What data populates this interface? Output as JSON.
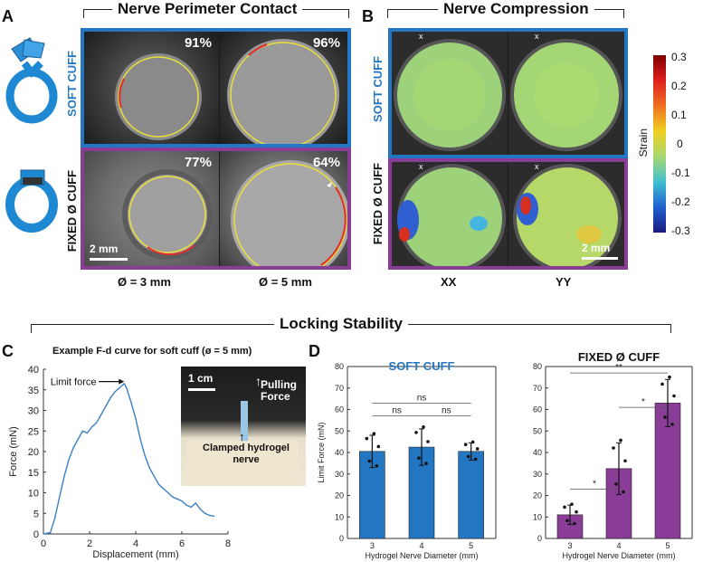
{
  "panels": {
    "a": "A",
    "b": "B",
    "c": "C",
    "d": "D"
  },
  "titles": {
    "perimeter": "Nerve Perimeter Contact",
    "compression": "Nerve Compression",
    "locking": "Locking Stability"
  },
  "perimeter": {
    "row_soft": "SOFT CUFF",
    "row_fixed": "FIXED Ø CUFF",
    "pct_soft_3": "91%",
    "pct_soft_5": "96%",
    "pct_fixed_3": "77%",
    "pct_fixed_5": "64%",
    "diam_3": "Ø = 3 mm",
    "diam_5": "Ø = 5 mm",
    "scale": "2 mm"
  },
  "compression": {
    "row_soft": "SOFT CUFF",
    "row_fixed": "FIXED Ø CUFF",
    "col_xx": "XX",
    "col_yy": "YY",
    "scale": "2 mm",
    "axis_mark": "x",
    "colorbar": {
      "label": "Strain",
      "ticks": [
        "0.3",
        "0.2",
        "0.1",
        "0",
        "-0.1",
        "-0.2",
        "-0.3"
      ]
    }
  },
  "colors": {
    "soft": "#2276c2",
    "fixed": "#8a3d96",
    "line": "#3a80c4"
  },
  "chart_data": [
    {
      "type": "line",
      "title": "Example F-d curve for soft cuff (ø = 5 mm)",
      "xlabel": "Displacement (mm)",
      "ylabel": "Force (mN)",
      "xlim": [
        0,
        8
      ],
      "ylim": [
        0,
        40
      ],
      "xticks": [
        "0",
        "2",
        "4",
        "6",
        "8"
      ],
      "yticks": [
        "0",
        "5",
        "10",
        "15",
        "20",
        "25",
        "30",
        "35",
        "40"
      ],
      "annotation": "Limit force",
      "x": [
        0,
        0.3,
        0.5,
        0.7,
        0.9,
        1.1,
        1.3,
        1.5,
        1.7,
        1.9,
        2.1,
        2.3,
        2.5,
        2.7,
        2.9,
        3.1,
        3.3,
        3.5,
        3.6,
        3.8,
        4.0,
        4.2,
        4.4,
        4.6,
        4.8,
        5.0,
        5.2,
        5.4,
        5.6,
        5.8,
        6.0,
        6.2,
        6.4,
        6.6,
        6.8,
        7.0,
        7.2,
        7.4
      ],
      "y": [
        0,
        0.3,
        4,
        9,
        14,
        18,
        21,
        23,
        25,
        24.5,
        26,
        27,
        29,
        31,
        33,
        34.5,
        35.5,
        36.5,
        35.5,
        32,
        28,
        23,
        19,
        16,
        14,
        12,
        11,
        10,
        9,
        8.5,
        8,
        7,
        6.5,
        7.5,
        6,
        5,
        4.5,
        4.3
      ],
      "inset": {
        "scale": "1 cm",
        "pulling": "Pulling Force",
        "clamped": "Clamped hydrogel nerve"
      }
    },
    {
      "type": "bar",
      "title": "SOFT CUFF",
      "xlabel": "Hydrogel Nerve Diameter (mm)",
      "ylabel": "Limit Force (mN)",
      "categories": [
        "3",
        "4",
        "5"
      ],
      "values": [
        40.5,
        42.5,
        40.5
      ],
      "errors": [
        7.5,
        8.5,
        4
      ],
      "ylim": [
        0,
        80
      ],
      "yticks": [
        "0",
        "10",
        "20",
        "30",
        "40",
        "50",
        "60",
        "70",
        "80"
      ],
      "significance": [
        {
          "from": "3",
          "to": "4",
          "label": "ns"
        },
        {
          "from": "4",
          "to": "5",
          "label": "ns"
        },
        {
          "from": "3",
          "to": "5",
          "label": "ns"
        }
      ]
    },
    {
      "type": "bar",
      "title": "FIXED Ø CUFF",
      "xlabel": "Hydrogel Nerve Diameter (mm)",
      "ylabel": "",
      "categories": [
        "3",
        "4",
        "5"
      ],
      "values": [
        11,
        32.5,
        63
      ],
      "errors": [
        4.5,
        12,
        11
      ],
      "ylim": [
        0,
        80
      ],
      "yticks": [
        "0",
        "10",
        "20",
        "30",
        "40",
        "50",
        "60",
        "70",
        "80"
      ],
      "significance": [
        {
          "from": "3",
          "to": "4",
          "label": "*"
        },
        {
          "from": "4",
          "to": "5",
          "label": "*"
        },
        {
          "from": "3",
          "to": "5",
          "label": "**"
        }
      ]
    }
  ]
}
